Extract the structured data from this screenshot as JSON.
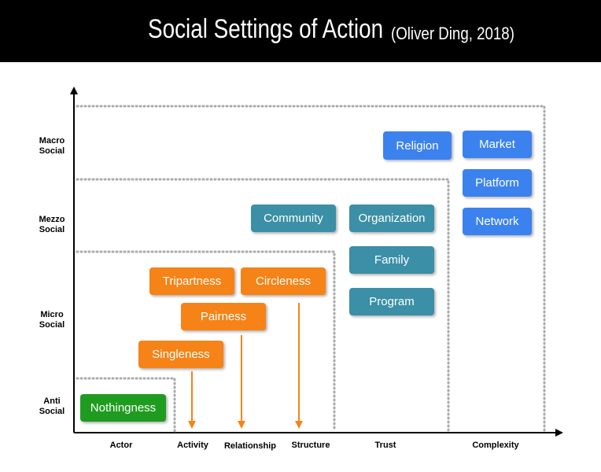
{
  "header": {
    "title": "Social Settings of Action",
    "subtitle": "(Oliver Ding, 2018)"
  },
  "y_axis": {
    "levels": [
      {
        "line1": "Macro",
        "line2": "Social"
      },
      {
        "line1": "Mezzo",
        "line2": "Social"
      },
      {
        "line1": "Micro",
        "line2": "Social"
      },
      {
        "line1": "Anti",
        "line2": "Social"
      }
    ]
  },
  "x_axis": {
    "categories": [
      "Actor",
      "Activity",
      "Relationship",
      "Structure",
      "Trust",
      "Complexity"
    ]
  },
  "boxes": {
    "religion": "Religion",
    "market": "Market",
    "platform": "Platform",
    "network": "Network",
    "community": "Community",
    "organization": "Organization",
    "family": "Family",
    "program": "Program",
    "tripartness": "Tripartness",
    "circleness": "Circleness",
    "pairness": "Pairness",
    "singleness": "Singleness",
    "nothingness": "Nothingness"
  },
  "colors": {
    "blue": "#3b82ef",
    "teal": "#3b8fa6",
    "orange": "#f68317",
    "green": "#1f9c1f",
    "arrow": "#f68317"
  }
}
